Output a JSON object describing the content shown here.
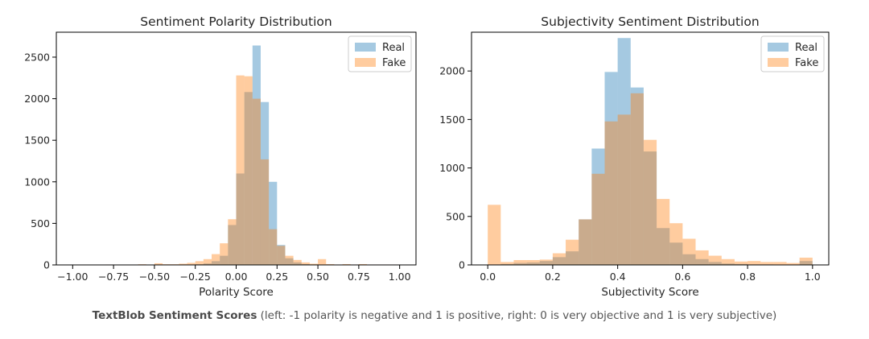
{
  "caption": {
    "bold": "TextBlob Sentiment Scores",
    "rest": " (left: -1 polarity is negative and 1 is positive, right: 0 is very objective and 1 is very subjective)"
  },
  "colors": {
    "real": "#1f77b4",
    "fake": "#ff7f0e",
    "bar_opacity": 0.4
  },
  "chart_data": [
    {
      "type": "bar",
      "title": "Sentiment Polarity Distribution",
      "xlabel": "Polarity Score",
      "ylabel": "",
      "xlim": [
        -1.1,
        1.1
      ],
      "ylim": [
        0,
        2800
      ],
      "xticks": [
        -1.0,
        -0.75,
        -0.5,
        -0.25,
        0.0,
        0.25,
        0.5,
        0.75,
        1.0
      ],
      "xtick_labels": [
        "−1.00",
        "−0.75",
        "−0.50",
        "−0.25",
        "0.00",
        "0.25",
        "0.50",
        "0.75",
        "1.00"
      ],
      "yticks": [
        0,
        500,
        1000,
        1500,
        2000,
        2500
      ],
      "ytick_labels": [
        "0",
        "500",
        "1000",
        "1500",
        "2000",
        "2500"
      ],
      "legend": [
        "Real",
        "Fake"
      ],
      "legend_loc": "upper right",
      "bin_edges": [
        -1.0,
        -0.95,
        -0.9,
        -0.85,
        -0.8,
        -0.75,
        -0.7,
        -0.65,
        -0.6,
        -0.55,
        -0.5,
        -0.45,
        -0.4,
        -0.35,
        -0.3,
        -0.25,
        -0.2,
        -0.15,
        -0.1,
        -0.05,
        0.0,
        0.05,
        0.1,
        0.15,
        0.2,
        0.25,
        0.3,
        0.35,
        0.4,
        0.45,
        0.5,
        0.55,
        0.6,
        0.65,
        0.7,
        0.75,
        0.8,
        0.85,
        0.9,
        0.95,
        1.0
      ],
      "series": [
        {
          "name": "Real",
          "values": [
            0,
            0,
            0,
            0,
            0,
            0,
            0,
            0,
            0,
            0,
            0,
            0,
            0,
            0,
            3,
            8,
            18,
            45,
            110,
            480,
            1100,
            2080,
            2640,
            1960,
            1000,
            240,
            80,
            30,
            10,
            5,
            3,
            2,
            0,
            0,
            0,
            0,
            0,
            0,
            0,
            0
          ]
        },
        {
          "name": "Fake",
          "values": [
            0,
            0,
            0,
            0,
            5,
            0,
            0,
            0,
            8,
            0,
            20,
            8,
            8,
            15,
            25,
            45,
            70,
            130,
            260,
            550,
            2280,
            2270,
            2000,
            1270,
            430,
            230,
            110,
            60,
            30,
            15,
            70,
            10,
            5,
            10,
            5,
            10,
            5,
            5,
            5,
            5
          ]
        }
      ]
    },
    {
      "type": "bar",
      "title": "Subjectivity Sentiment Distribution",
      "xlabel": "Subjectivity Score",
      "ylabel": "",
      "xlim": [
        -0.05,
        1.05
      ],
      "ylim": [
        0,
        2400
      ],
      "xticks": [
        0.0,
        0.2,
        0.4,
        0.6,
        0.8,
        1.0
      ],
      "xtick_labels": [
        "0.0",
        "0.2",
        "0.4",
        "0.6",
        "0.8",
        "1.0"
      ],
      "yticks": [
        0,
        500,
        1000,
        1500,
        2000
      ],
      "ytick_labels": [
        "0",
        "500",
        "1000",
        "1500",
        "2000"
      ],
      "legend": [
        "Real",
        "Fake"
      ],
      "legend_loc": "upper right",
      "bin_edges": [
        0.0,
        0.04,
        0.08,
        0.12,
        0.16,
        0.2,
        0.24,
        0.28,
        0.32,
        0.36,
        0.4,
        0.44,
        0.48,
        0.52,
        0.56,
        0.6,
        0.64,
        0.68,
        0.72,
        0.76,
        0.8,
        0.84,
        0.88,
        0.92,
        0.96,
        1.0
      ],
      "series": [
        {
          "name": "Real",
          "values": [
            5,
            10,
            20,
            25,
            40,
            80,
            140,
            470,
            1200,
            1990,
            2340,
            1830,
            1170,
            380,
            230,
            110,
            60,
            30,
            15,
            10,
            5,
            5,
            3,
            2,
            40
          ]
        },
        {
          "name": "Fake",
          "values": [
            620,
            30,
            50,
            50,
            55,
            120,
            260,
            470,
            940,
            1480,
            1550,
            1770,
            1290,
            680,
            430,
            270,
            150,
            95,
            60,
            35,
            40,
            30,
            30,
            20,
            75
          ]
        }
      ]
    }
  ]
}
